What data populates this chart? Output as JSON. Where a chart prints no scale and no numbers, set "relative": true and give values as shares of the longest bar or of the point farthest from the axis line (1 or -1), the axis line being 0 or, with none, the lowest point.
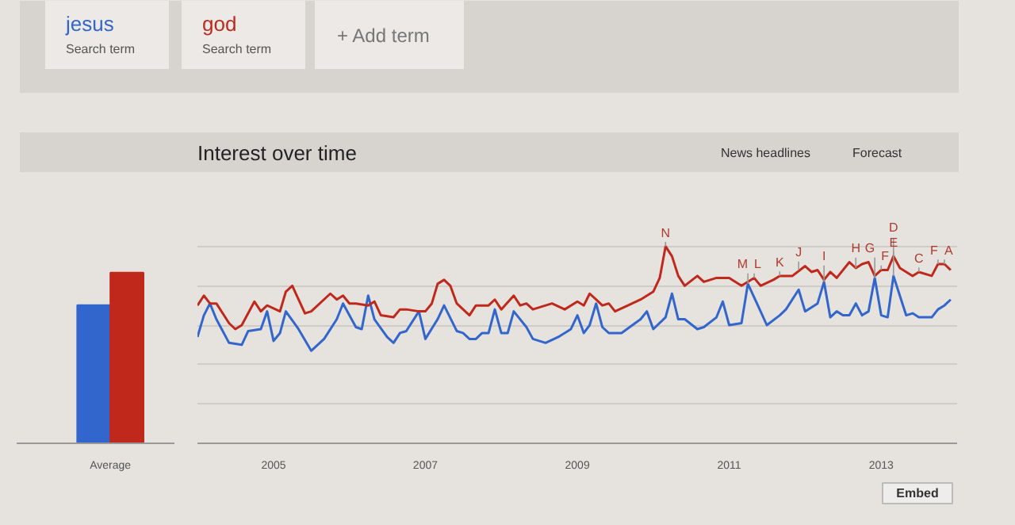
{
  "chart_data": [
    {
      "type": "bar",
      "relative": true,
      "categories": [
        "Average"
      ],
      "series": [
        {
          "color": "#3366cc",
          "values": [
            0.81
          ]
        },
        {
          "color": "#c0281c",
          "values": [
            1
          ]
        }
      ]
    },
    {
      "type": "line",
      "relative": true,
      "title": "Interest over time",
      "legend": "top left",
      "grid": "y",
      "marker": "none",
      "line_style": "solid",
      "xlim": [
        "2004-01",
        "2014-01"
      ],
      "xticks": [
        "2005",
        "2007",
        "2009",
        "2011",
        "2013"
      ],
      "series": [
        {
          "name": "jesus",
          "color": "#3366cc",
          "x": [
            "2004-01",
            "2004-02",
            "2004-03",
            "2004-04",
            "2004-06",
            "2004-08",
            "2004-09",
            "2004-11",
            "2004-12",
            "2005-01",
            "2005-02",
            "2005-03",
            "2005-05",
            "2005-07",
            "2005-09",
            "2005-11",
            "2005-12",
            "2006-02",
            "2006-03",
            "2006-04",
            "2006-05",
            "2006-07",
            "2006-08",
            "2006-09",
            "2006-10",
            "2006-12",
            "2007-01",
            "2007-03",
            "2007-04",
            "2007-06",
            "2007-07",
            "2007-08",
            "2007-09",
            "2007-10",
            "2007-11",
            "2007-12",
            "2008-01",
            "2008-02",
            "2008-03",
            "2008-05",
            "2008-06",
            "2008-08",
            "2008-10",
            "2008-12",
            "2009-01",
            "2009-02",
            "2009-03",
            "2009-04",
            "2009-05",
            "2009-06",
            "2009-08",
            "2009-11",
            "2009-12",
            "2010-01",
            "2010-03",
            "2010-04",
            "2010-05",
            "2010-06",
            "2010-08",
            "2010-09",
            "2010-11",
            "2010-12",
            "2011-01",
            "2011-03",
            "2011-04",
            "2011-06",
            "2011-07",
            "2011-09",
            "2011-10",
            "2011-12",
            "2012-01",
            "2012-03",
            "2012-04",
            "2012-05",
            "2012-06",
            "2012-07",
            "2012-08",
            "2012-09",
            "2012-10",
            "2012-11",
            "2012-12",
            "2013-01",
            "2013-02",
            "2013-03",
            "2013-05",
            "2013-06",
            "2013-07",
            "2013-09",
            "2013-10",
            "2013-11",
            "2013-12"
          ],
          "values": [
            0.54,
            0.65,
            0.71,
            0.63,
            0.51,
            0.5,
            0.57,
            0.58,
            0.67,
            0.52,
            0.56,
            0.67,
            0.58,
            0.47,
            0.53,
            0.63,
            0.71,
            0.59,
            0.58,
            0.75,
            0.63,
            0.54,
            0.51,
            0.56,
            0.57,
            0.67,
            0.53,
            0.63,
            0.7,
            0.57,
            0.56,
            0.53,
            0.53,
            0.56,
            0.56,
            0.68,
            0.56,
            0.56,
            0.67,
            0.59,
            0.53,
            0.51,
            0.54,
            0.58,
            0.65,
            0.56,
            0.6,
            0.71,
            0.59,
            0.56,
            0.56,
            0.63,
            0.67,
            0.58,
            0.64,
            0.76,
            0.63,
            0.63,
            0.58,
            0.59,
            0.64,
            0.72,
            0.6,
            0.61,
            0.81,
            0.67,
            0.6,
            0.65,
            0.68,
            0.78,
            0.67,
            0.71,
            0.82,
            0.64,
            0.67,
            0.65,
            0.65,
            0.71,
            0.65,
            0.67,
            0.84,
            0.65,
            0.64,
            0.85,
            0.65,
            0.66,
            0.64,
            0.64,
            0.68,
            0.7,
            0.73
          ]
        },
        {
          "name": "god",
          "color": "#c0281c",
          "x": [
            "2004-01",
            "2004-02",
            "2004-03",
            "2004-04",
            "2004-06",
            "2004-07",
            "2004-08",
            "2004-10",
            "2004-11",
            "2004-12",
            "2005-02",
            "2005-03",
            "2005-04",
            "2005-06",
            "2005-07",
            "2005-10",
            "2005-11",
            "2005-12",
            "2006-01",
            "2006-02",
            "2006-04",
            "2006-05",
            "2006-06",
            "2006-08",
            "2006-09",
            "2006-10",
            "2006-12",
            "2007-01",
            "2007-02",
            "2007-03",
            "2007-04",
            "2007-05",
            "2007-06",
            "2007-08",
            "2007-09",
            "2007-11",
            "2007-12",
            "2008-01",
            "2008-03",
            "2008-04",
            "2008-05",
            "2008-06",
            "2008-08",
            "2008-09",
            "2008-11",
            "2009-01",
            "2009-02",
            "2009-03",
            "2009-04",
            "2009-05",
            "2009-06",
            "2009-07",
            "2009-09",
            "2009-11",
            "2010-01",
            "2010-02",
            "2010-03",
            "2010-04",
            "2010-05",
            "2010-06",
            "2010-08",
            "2010-09",
            "2010-11",
            "2011-01",
            "2011-03",
            "2011-05",
            "2011-06",
            "2011-08",
            "2011-09",
            "2011-11",
            "2012-01",
            "2012-02",
            "2012-03",
            "2012-04",
            "2012-05",
            "2012-06",
            "2012-08",
            "2012-09",
            "2012-10",
            "2012-11",
            "2012-12",
            "2013-01",
            "2013-02",
            "2013-03",
            "2013-04",
            "2013-06",
            "2013-07",
            "2013-09",
            "2013-10",
            "2013-11",
            "2013-12"
          ],
          "values": [
            0.7,
            0.75,
            0.71,
            0.71,
            0.61,
            0.58,
            0.6,
            0.72,
            0.67,
            0.7,
            0.67,
            0.77,
            0.8,
            0.66,
            0.67,
            0.76,
            0.73,
            0.75,
            0.71,
            0.71,
            0.7,
            0.72,
            0.65,
            0.64,
            0.68,
            0.68,
            0.67,
            0.67,
            0.71,
            0.81,
            0.83,
            0.8,
            0.71,
            0.65,
            0.7,
            0.7,
            0.73,
            0.68,
            0.75,
            0.7,
            0.71,
            0.68,
            0.7,
            0.71,
            0.68,
            0.72,
            0.7,
            0.76,
            0.73,
            0.7,
            0.71,
            0.67,
            0.7,
            0.73,
            0.77,
            0.84,
            1.0,
            0.95,
            0.85,
            0.8,
            0.85,
            0.82,
            0.84,
            0.84,
            0.8,
            0.84,
            0.8,
            0.83,
            0.85,
            0.85,
            0.9,
            0.87,
            0.88,
            0.83,
            0.87,
            0.84,
            0.92,
            0.89,
            0.91,
            0.92,
            0.85,
            0.88,
            0.88,
            0.95,
            0.89,
            0.85,
            0.87,
            0.85,
            0.91,
            0.91,
            0.88
          ]
        }
      ],
      "annotations": [
        "Search term",
        "Search term",
        "+ Add term",
        "News headlines",
        "Forecast",
        "Embed",
        {
          "text": "N",
          "x": "2010-03",
          "y": 1.0
        },
        {
          "text": "M",
          "x": "2011-04",
          "y": 0.81
        },
        {
          "text": "L",
          "x": "2011-05",
          "y": 0.84
        },
        {
          "text": "K",
          "x": "2011-09",
          "y": 0.85
        },
        {
          "text": "J",
          "x": "2011-12",
          "y": 0.88
        },
        {
          "text": "I",
          "x": "2012-04",
          "y": 0.82
        },
        {
          "text": "H",
          "x": "2012-09",
          "y": 0.89
        },
        {
          "text": "G",
          "x": "2012-12",
          "y": 0.84
        },
        {
          "text": "F",
          "x": "2013-01",
          "y": 0.88
        },
        {
          "text": "E",
          "x": "2013-03",
          "y": 0.95
        },
        {
          "text": "D",
          "x": "2013-03",
          "y": 0.85
        },
        {
          "text": "C",
          "x": "2013-07",
          "y": 0.87
        },
        {
          "text": "F",
          "x": "2013-10",
          "y": 0.91
        },
        {
          "text": "A",
          "x": "2013-11",
          "y": 0.91
        }
      ]
    }
  ]
}
